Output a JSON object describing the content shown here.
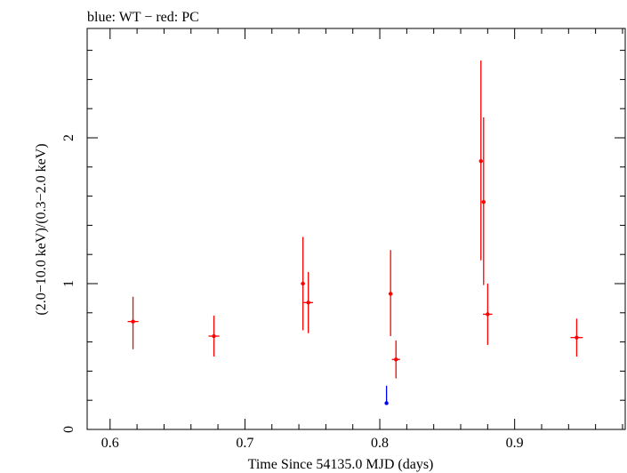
{
  "chart_data": {
    "type": "scatter",
    "title": "blue: WT − red: PC",
    "xlabel": "Time Since 54135.0 MJD (days)",
    "ylabel": "(2.0−10.0 keV)/(0.3−2.0 keV)",
    "xlim": [
      0.583,
      0.982
    ],
    "ylim": [
      0,
      2.75
    ],
    "x_ticks": [
      0.6,
      0.7,
      0.8,
      0.9
    ],
    "x_tick_labels": [
      "0.6",
      "0.7",
      "0.8",
      "0.9"
    ],
    "y_ticks": [
      0,
      1,
      2
    ],
    "y_tick_labels": [
      "0",
      "1",
      "2"
    ],
    "grid": false,
    "series": [
      {
        "name": "WT",
        "color": "#0000ff",
        "points": [
          {
            "x": 0.805,
            "y": 0.18,
            "xerr": 0.0008,
            "yerr_low": 0.17,
            "yerr_high": 0.3
          }
        ]
      },
      {
        "name": "PC",
        "color": "#ff0000",
        "points": [
          {
            "x": 0.617,
            "y": 0.74,
            "xerr": 0.004,
            "yerr_low": 0.55,
            "yerr_high": 0.91
          },
          {
            "x": 0.677,
            "y": 0.64,
            "xerr": 0.004,
            "yerr_low": 0.5,
            "yerr_high": 0.78
          },
          {
            "x": 0.743,
            "y": 1.0,
            "xerr": 0.0015,
            "yerr_low": 0.68,
            "yerr_high": 1.32
          },
          {
            "x": 0.747,
            "y": 0.87,
            "xerr": 0.0035,
            "yerr_low": 0.66,
            "yerr_high": 1.08
          },
          {
            "x": 0.808,
            "y": 0.93,
            "xerr": 0.0015,
            "yerr_low": 0.64,
            "yerr_high": 1.23
          },
          {
            "x": 0.812,
            "y": 0.48,
            "xerr": 0.003,
            "yerr_low": 0.35,
            "yerr_high": 0.61
          },
          {
            "x": 0.875,
            "y": 1.84,
            "xerr": 0.0012,
            "yerr_low": 1.16,
            "yerr_high": 2.53
          },
          {
            "x": 0.877,
            "y": 1.56,
            "xerr": 0.0012,
            "yerr_low": 0.99,
            "yerr_high": 2.14
          },
          {
            "x": 0.88,
            "y": 0.79,
            "xerr": 0.0035,
            "yerr_low": 0.58,
            "yerr_high": 1.0
          },
          {
            "x": 0.946,
            "y": 0.63,
            "xerr": 0.0045,
            "yerr_low": 0.5,
            "yerr_high": 0.76
          }
        ]
      }
    ]
  }
}
